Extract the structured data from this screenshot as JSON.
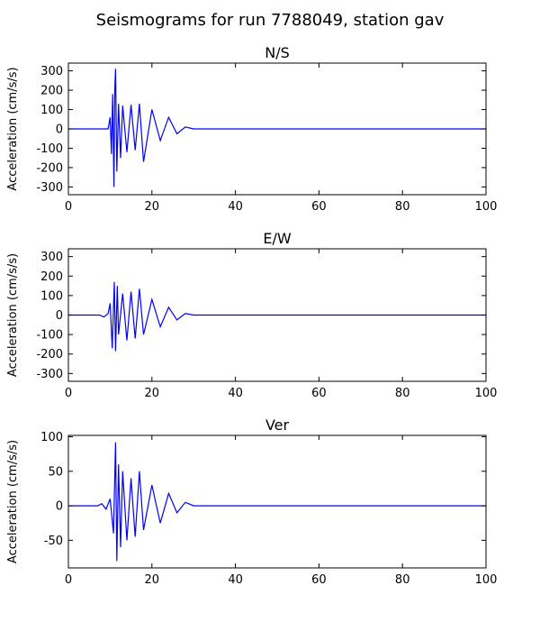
{
  "suptitle": "Seismograms for run 7788049, station gav",
  "chart_data": [
    {
      "type": "line",
      "title": "N/S",
      "xlabel": "",
      "ylabel": "Acceleration (cm/s/s)",
      "xlim": [
        0,
        100
      ],
      "ylim": [
        -340,
        340
      ],
      "xticks": [
        0,
        20,
        40,
        60,
        80,
        100
      ],
      "yticks": [
        -300,
        -200,
        -100,
        0,
        100,
        200,
        300
      ],
      "grid": false,
      "color": "#0000ff",
      "x": [
        0,
        9.5,
        10.0,
        10.3,
        10.6,
        10.9,
        11.1,
        11.3,
        11.6,
        12.0,
        12.5,
        13.0,
        14.0,
        15.0,
        16.0,
        17.0,
        18.0,
        20.0,
        22.0,
        24.0,
        26.0,
        28.0,
        30.0,
        100
      ],
      "y": [
        0,
        0,
        60,
        -130,
        180,
        -300,
        200,
        310,
        -220,
        130,
        -150,
        120,
        -120,
        125,
        -110,
        130,
        -170,
        100,
        -60,
        60,
        -25,
        10,
        0,
        0
      ]
    },
    {
      "type": "line",
      "title": "E/W",
      "xlabel": "",
      "ylabel": "Acceleration (cm/s/s)",
      "xlim": [
        0,
        100
      ],
      "ylim": [
        -340,
        340
      ],
      "xticks": [
        0,
        20,
        40,
        60,
        80,
        100
      ],
      "yticks": [
        -300,
        -200,
        -100,
        0,
        100,
        200,
        300
      ],
      "grid": false,
      "color": "#0000ff",
      "x": [
        0,
        7.5,
        8.5,
        9.5,
        10.0,
        10.5,
        11.0,
        11.3,
        11.7,
        12.0,
        13.0,
        14.0,
        15.0,
        16.0,
        17.0,
        18.0,
        20.0,
        22.0,
        24.0,
        26.0,
        28.0,
        30.0,
        100
      ],
      "y": [
        0,
        0,
        -10,
        8,
        60,
        -170,
        170,
        -185,
        150,
        -100,
        110,
        -130,
        120,
        -120,
        135,
        -100,
        80,
        -60,
        40,
        -25,
        8,
        0,
        0
      ]
    },
    {
      "type": "line",
      "title": "Ver",
      "xlabel": "",
      "ylabel": "Acceleration (cm/s/s)",
      "xlim": [
        0,
        100
      ],
      "ylim": [
        -90,
        102
      ],
      "xticks": [
        0,
        20,
        40,
        60,
        80,
        100
      ],
      "yticks": [
        -50,
        0,
        50,
        100
      ],
      "grid": false,
      "color": "#0000ff",
      "x": [
        0,
        7.0,
        8.0,
        9.0,
        10.0,
        10.8,
        11.3,
        11.6,
        12.0,
        12.5,
        13.0,
        14.0,
        15.0,
        16.0,
        17.0,
        18.0,
        20.0,
        22.0,
        24.0,
        26.0,
        28.0,
        30.0,
        100
      ],
      "y": [
        0,
        0,
        3,
        -5,
        10,
        -40,
        92,
        -80,
        60,
        -60,
        50,
        -50,
        40,
        -45,
        50,
        -35,
        30,
        -25,
        18,
        -10,
        5,
        0,
        0
      ]
    }
  ]
}
